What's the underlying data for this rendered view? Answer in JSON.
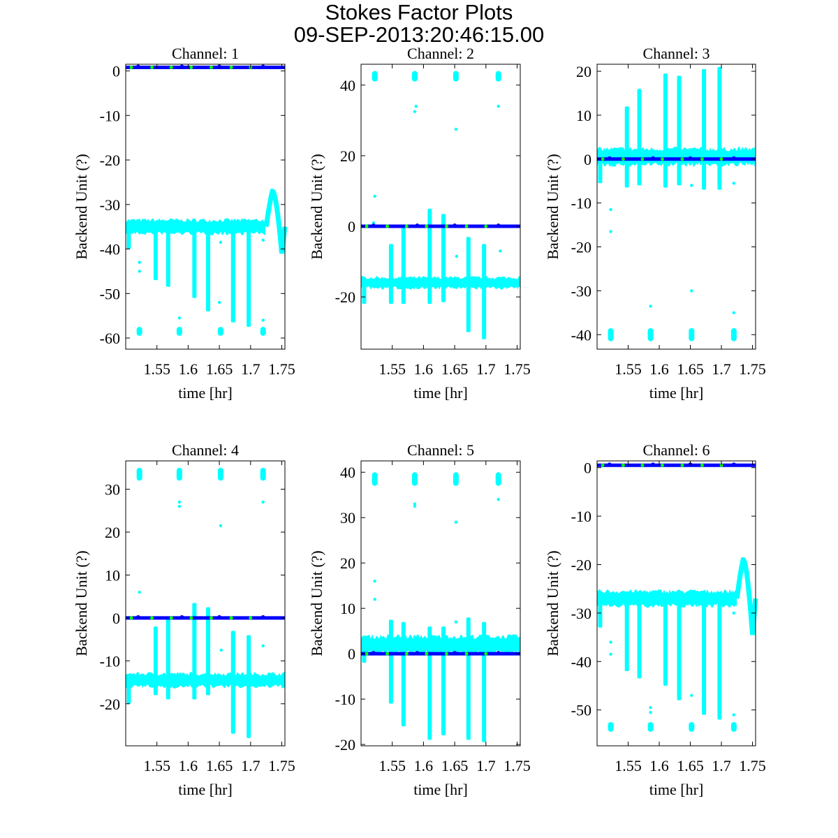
{
  "figure": {
    "title": "Stokes Factor Plots",
    "subtitle": "09-SEP-2013:20:46:15.00"
  },
  "colors": {
    "band": "#00ffff",
    "line": "#0000ff",
    "marker": "#00ff00",
    "axis": "#000000"
  },
  "chart_data": [
    {
      "type": "scatter",
      "title": "Channel: 1",
      "xlabel": "time [hr]",
      "ylabel": "Backend Unit (?)",
      "xlim": [
        1.5,
        1.755
      ],
      "ylim": [
        -62.5,
        1.5
      ],
      "xticks": [
        1.55,
        1.6,
        1.65,
        1.7,
        1.75
      ],
      "yticks": [
        0,
        -10,
        -20,
        -30,
        -40,
        -50,
        -60
      ],
      "blue_level": 0.8,
      "band": {
        "center": -35,
        "half": 1.5
      },
      "spikes": [
        [
          1.505,
          -34,
          -40
        ],
        [
          1.548,
          -34,
          -47
        ],
        [
          1.568,
          -34,
          -48.5
        ],
        [
          1.61,
          -34,
          -51
        ],
        [
          1.632,
          -34,
          -54
        ],
        [
          1.672,
          -34,
          -56.5
        ],
        [
          1.697,
          -34,
          -57.5
        ]
      ],
      "clusters": [
        [
          1.522,
          -59.5,
          -57.5
        ],
        [
          1.586,
          -59.5,
          -57.5
        ],
        [
          1.652,
          -59.5,
          -57.5
        ],
        [
          1.72,
          -59.5,
          -57.5
        ]
      ],
      "points": [
        [
          1.522,
          -43
        ],
        [
          1.522,
          -45
        ],
        [
          1.652,
          -38.5
        ],
        [
          1.65,
          -52
        ],
        [
          1.72,
          -38
        ],
        [
          1.72,
          -56
        ],
        [
          1.586,
          -55.5
        ]
      ],
      "bump": {
        "start": 1.725,
        "peak": [
          1.735,
          -27
        ],
        "dip": [
          1.75,
          -41
        ],
        "end": 1.755
      }
    },
    {
      "type": "scatter",
      "title": "Channel: 2",
      "xlabel": "time [hr]",
      "ylabel": "Backend Unit (?)",
      "xlim": [
        1.5,
        1.755
      ],
      "ylim": [
        -34.8,
        45.9
      ],
      "xticks": [
        1.55,
        1.6,
        1.65,
        1.7,
        1.75
      ],
      "yticks": [
        40,
        20,
        0,
        -20
      ],
      "blue_level": 0,
      "band": {
        "center": -16,
        "half": 1.5
      },
      "spikes": [
        [
          1.505,
          -15,
          -22
        ],
        [
          1.548,
          -5,
          -22
        ],
        [
          1.568,
          0,
          -22
        ],
        [
          1.61,
          5,
          -22
        ],
        [
          1.632,
          3.5,
          -21.5
        ],
        [
          1.672,
          -3,
          -30
        ],
        [
          1.697,
          -5,
          -32
        ]
      ],
      "clusters": [
        [
          1.522,
          41,
          44
        ],
        [
          1.586,
          41,
          44
        ],
        [
          1.652,
          41,
          44
        ],
        [
          1.72,
          41,
          44
        ]
      ],
      "points": [
        [
          1.522,
          8.5
        ],
        [
          1.52,
          1
        ],
        [
          1.588,
          34
        ],
        [
          1.586,
          32.5
        ],
        [
          1.652,
          27.5
        ],
        [
          1.72,
          34
        ],
        [
          1.653,
          -8.5
        ],
        [
          1.723,
          -7
        ]
      ],
      "bump": null
    },
    {
      "type": "scatter",
      "title": "Channel: 3",
      "xlabel": "time [hr]",
      "ylabel": "Backend Unit (?)",
      "xlim": [
        1.5,
        1.755
      ],
      "ylim": [
        -43.3,
        21.6
      ],
      "xticks": [
        1.55,
        1.6,
        1.65,
        1.7,
        1.75
      ],
      "yticks": [
        20,
        10,
        0,
        -10,
        -20,
        -30,
        -40
      ],
      "blue_level": 0,
      "band": {
        "center": 0.5,
        "half": 1.8
      },
      "spikes": [
        [
          1.505,
          0,
          -5.5
        ],
        [
          1.548,
          12,
          -6.5
        ],
        [
          1.568,
          16,
          -6
        ],
        [
          1.61,
          19.5,
          -6.5
        ],
        [
          1.632,
          19,
          -6
        ],
        [
          1.672,
          20.5,
          -7
        ],
        [
          1.697,
          21,
          -7
        ]
      ],
      "clusters": [
        [
          1.522,
          -41.5,
          -38.5
        ],
        [
          1.586,
          -41.5,
          -38.5
        ],
        [
          1.652,
          -41.5,
          -38.5
        ],
        [
          1.72,
          -41.5,
          -38.5
        ]
      ],
      "points": [
        [
          1.522,
          -11.5
        ],
        [
          1.522,
          -16.5
        ],
        [
          1.586,
          -33.5
        ],
        [
          1.652,
          -30
        ],
        [
          1.652,
          -6
        ],
        [
          1.72,
          -35
        ],
        [
          1.72,
          -5.5
        ]
      ],
      "bump": null
    },
    {
      "type": "scatter",
      "title": "Channel: 4",
      "xlabel": "time [hr]",
      "ylabel": "Backend Unit (?)",
      "xlim": [
        1.5,
        1.755
      ],
      "ylim": [
        -29.8,
        36.6
      ],
      "xticks": [
        1.55,
        1.6,
        1.65,
        1.7,
        1.75
      ],
      "yticks": [
        30,
        20,
        10,
        0,
        -10,
        -20
      ],
      "blue_level": 0,
      "band": {
        "center": -14.5,
        "half": 1.5
      },
      "spikes": [
        [
          1.505,
          -13,
          -20
        ],
        [
          1.548,
          -2,
          -18
        ],
        [
          1.568,
          0,
          -19
        ],
        [
          1.61,
          3.5,
          -19
        ],
        [
          1.632,
          2.5,
          -18
        ],
        [
          1.672,
          -3,
          -27
        ],
        [
          1.697,
          -4,
          -28
        ]
      ],
      "clusters": [
        [
          1.522,
          32,
          35
        ],
        [
          1.586,
          32,
          35
        ],
        [
          1.652,
          32,
          35
        ],
        [
          1.72,
          32,
          35
        ]
      ],
      "points": [
        [
          1.522,
          6
        ],
        [
          1.586,
          27
        ],
        [
          1.586,
          26
        ],
        [
          1.652,
          21.5
        ],
        [
          1.72,
          27
        ],
        [
          1.653,
          -7.5
        ],
        [
          1.72,
          -6.5
        ]
      ],
      "bump": null
    },
    {
      "type": "scatter",
      "title": "Channel: 5",
      "xlabel": "time [hr]",
      "ylabel": "Backend Unit (?)",
      "xlim": [
        1.5,
        1.755
      ],
      "ylim": [
        -20.3,
        42.5
      ],
      "xticks": [
        1.55,
        1.6,
        1.65,
        1.7,
        1.75
      ],
      "yticks": [
        40,
        30,
        20,
        10,
        0,
        -10,
        -20
      ],
      "blue_level": 0,
      "band": {
        "center": 2,
        "half": 1.8
      },
      "spikes": [
        [
          1.505,
          4,
          -2
        ],
        [
          1.548,
          7.5,
          -11
        ],
        [
          1.568,
          7,
          -16
        ],
        [
          1.61,
          6,
          -19
        ],
        [
          1.632,
          6,
          -18
        ],
        [
          1.672,
          8,
          -19
        ],
        [
          1.697,
          7,
          -19.5
        ]
      ],
      "clusters": [
        [
          1.522,
          37,
          40
        ],
        [
          1.586,
          37,
          40
        ],
        [
          1.652,
          37,
          40
        ],
        [
          1.72,
          37,
          40
        ]
      ],
      "points": [
        [
          1.522,
          16
        ],
        [
          1.522,
          12
        ],
        [
          1.586,
          33
        ],
        [
          1.586,
          32.5
        ],
        [
          1.652,
          29
        ],
        [
          1.72,
          34
        ],
        [
          1.652,
          7
        ]
      ],
      "bump": null
    },
    {
      "type": "scatter",
      "title": "Channel: 6",
      "xlabel": "time [hr]",
      "ylabel": "Backend Unit (?)",
      "xlim": [
        1.5,
        1.755
      ],
      "ylim": [
        -57.4,
        1.4
      ],
      "xticks": [
        1.55,
        1.6,
        1.65,
        1.7,
        1.75
      ],
      "yticks": [
        0,
        -10,
        -20,
        -30,
        -40,
        -50
      ],
      "blue_level": 0.5,
      "band": {
        "center": -27,
        "half": 1.5
      },
      "spikes": [
        [
          1.505,
          -26,
          -33
        ],
        [
          1.548,
          -26,
          -42
        ],
        [
          1.568,
          -26,
          -43.5
        ],
        [
          1.61,
          -26,
          -45
        ],
        [
          1.632,
          -26,
          -48
        ],
        [
          1.672,
          -26,
          -51
        ],
        [
          1.697,
          -26,
          -52
        ]
      ],
      "clusters": [
        [
          1.522,
          -54.5,
          -52.5
        ],
        [
          1.586,
          -54.5,
          -52.5
        ],
        [
          1.652,
          -54.5,
          -52.5
        ],
        [
          1.72,
          -54.5,
          -52.5
        ]
      ],
      "points": [
        [
          1.522,
          -36
        ],
        [
          1.522,
          -38.5
        ],
        [
          1.586,
          -49.5
        ],
        [
          1.586,
          -50.5
        ],
        [
          1.652,
          -47
        ],
        [
          1.72,
          -30
        ],
        [
          1.72,
          -51
        ]
      ],
      "bump": {
        "start": 1.725,
        "peak": [
          1.735,
          -19
        ],
        "dip": [
          1.75,
          -34.5
        ],
        "end": 1.755
      }
    }
  ],
  "green_marker_x": [
    1.509,
    1.542,
    1.573,
    1.605,
    1.637,
    1.669,
    1.7
  ],
  "blue_marker_x": [
    1.52,
    1.59,
    1.65,
    1.72
  ]
}
